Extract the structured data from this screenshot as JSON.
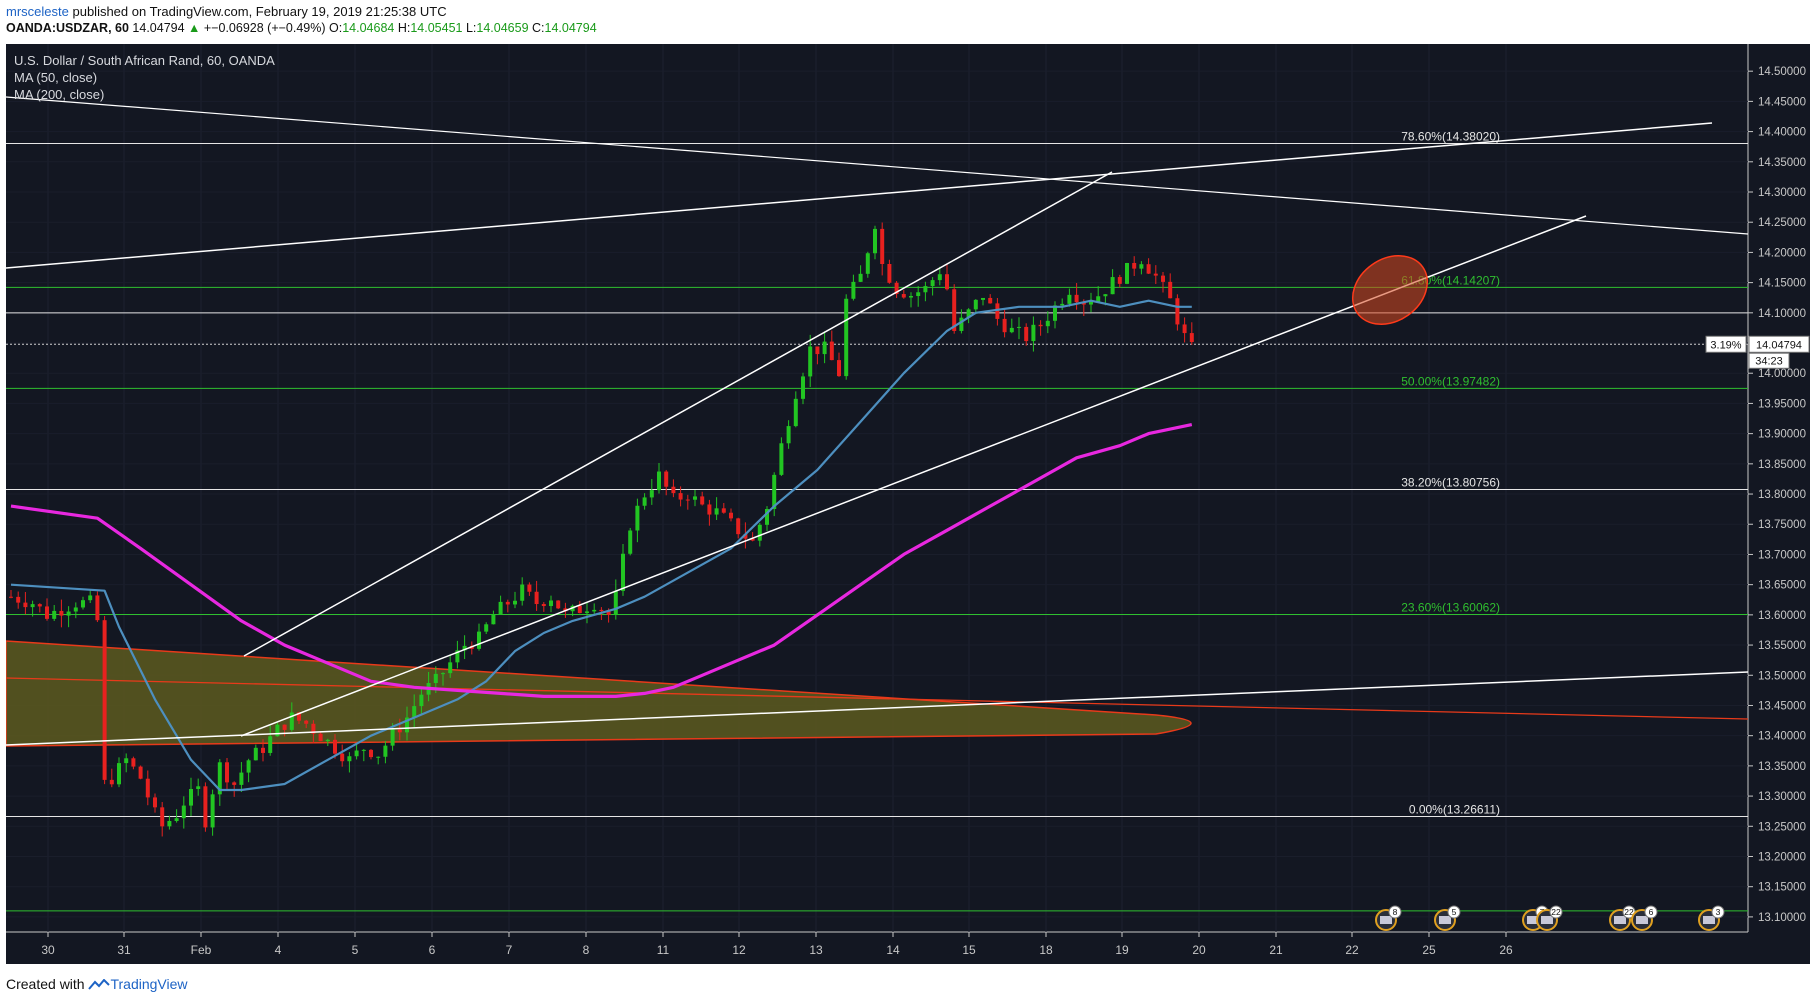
{
  "header": {
    "user": "mrsceleste",
    "published": "published on TradingView.com, February 19, 2019 21:25:38 UTC",
    "symbol": "OANDA:USDZAR, 60",
    "last": "14.04794",
    "change": "+−0.06928 (+−0.49%)",
    "open_label": "O:",
    "open": "14.04684",
    "high_label": "H:",
    "high": "14.05451",
    "low_label": "L:",
    "low": "14.04659",
    "close_label": "C:",
    "close": "14.04794"
  },
  "legend": {
    "title": "U.S. Dollar / South African Rand, 60, OANDA",
    "ma50": "MA (50, close)",
    "ma200": "MA (200, close)"
  },
  "footer": {
    "created": "Created with",
    "brand": "TradingView"
  },
  "colors": {
    "background": "#131722",
    "up": "#22c522",
    "down": "#e8211f",
    "ma50": "#4d8fbf",
    "ma200": "#e828e0",
    "fib_green": "#2fbf2f",
    "trend": "#ffffff",
    "ellipse_fill": "#5d5a1e",
    "ellipse_stroke": "#e83a1a"
  },
  "price_tags": {
    "pct": "3.19%",
    "price": "14.04794",
    "countdown": "34:23"
  },
  "events": [
    {
      "count": "8",
      "icon": "us-flag-icon"
    },
    {
      "count": "5",
      "icon": "us-flag-icon"
    },
    {
      "count": "7",
      "icon": "us-flag-icon"
    },
    {
      "count": "22",
      "icon": "us-flag-icon"
    },
    {
      "count": "22",
      "icon": "us-flag-icon"
    },
    {
      "count": "6",
      "icon": "us-flag-icon"
    },
    {
      "count": "3",
      "icon": "us-flag-icon"
    }
  ],
  "chart_data": {
    "type": "candlestick",
    "ylim": [
      13.075,
      14.545
    ],
    "yticks": [
      14.5,
      14.45,
      14.4,
      14.35,
      14.3,
      14.25,
      14.2,
      14.15,
      14.1,
      14.05,
      14.0,
      13.95,
      13.9,
      13.85,
      13.8,
      13.75,
      13.7,
      13.65,
      13.6,
      13.55,
      13.5,
      13.45,
      13.4,
      13.35,
      13.3,
      13.25,
      13.2,
      13.15,
      13.1
    ],
    "xticks": [
      "30",
      "31",
      "Feb",
      "4",
      "5",
      "6",
      "7",
      "8",
      "11",
      "12",
      "13",
      "14",
      "15",
      "18",
      "19",
      "20",
      "21",
      "22",
      "25",
      "26"
    ],
    "horizontal_levels": [
      {
        "price": 14.3802,
        "label": "78.60%(14.38020)",
        "color": "white"
      },
      {
        "price": 14.14207,
        "label": "61.80%(14.14207)",
        "color": "green"
      },
      {
        "price": 14.1,
        "label": "",
        "color": "white"
      },
      {
        "price": 13.97482,
        "label": "50.00%(13.97482)",
        "color": "green"
      },
      {
        "price": 13.80756,
        "label": "38.20%(13.80756)",
        "color": "white"
      },
      {
        "price": 13.60062,
        "label": "23.60%(13.60062)",
        "color": "green"
      },
      {
        "price": 13.26611,
        "label": "0.00%(13.26611)",
        "color": "white"
      },
      {
        "price": 13.11,
        "label": "",
        "color": "green"
      }
    ],
    "close_path": [
      [
        0,
        13.63
      ],
      [
        3,
        13.62
      ],
      [
        5,
        13.6
      ],
      [
        7,
        13.61
      ],
      [
        9,
        13.62
      ],
      [
        11,
        13.62
      ],
      [
        12,
        13.59
      ],
      [
        13,
        13.32
      ],
      [
        14,
        13.33
      ],
      [
        16,
        13.36
      ],
      [
        18,
        13.33
      ],
      [
        20,
        13.27
      ],
      [
        21,
        13.25
      ],
      [
        23,
        13.27
      ],
      [
        24,
        13.29
      ],
      [
        26,
        13.31
      ],
      [
        27,
        13.26
      ],
      [
        28,
        13.31
      ],
      [
        29,
        13.35
      ],
      [
        31,
        13.32
      ],
      [
        33,
        13.36
      ],
      [
        35,
        13.38
      ],
      [
        37,
        13.41
      ],
      [
        39,
        13.43
      ],
      [
        41,
        13.42
      ],
      [
        43,
        13.4
      ],
      [
        45,
        13.38
      ],
      [
        47,
        13.36
      ],
      [
        49,
        13.38
      ],
      [
        51,
        13.37
      ],
      [
        53,
        13.4
      ],
      [
        55,
        13.43
      ],
      [
        57,
        13.47
      ],
      [
        59,
        13.49
      ],
      [
        61,
        13.52
      ],
      [
        63,
        13.55
      ],
      [
        65,
        13.56
      ],
      [
        67,
        13.6
      ],
      [
        69,
        13.62
      ],
      [
        71,
        13.64
      ],
      [
        73,
        13.62
      ],
      [
        75,
        13.63
      ],
      [
        77,
        13.6
      ],
      [
        79,
        13.61
      ],
      [
        81,
        13.62
      ],
      [
        83,
        13.6
      ],
      [
        84,
        13.63
      ],
      [
        86,
        13.75
      ],
      [
        88,
        13.8
      ],
      [
        90,
        13.83
      ],
      [
        92,
        13.79
      ],
      [
        94,
        13.8
      ],
      [
        96,
        13.78
      ],
      [
        98,
        13.77
      ],
      [
        100,
        13.75
      ],
      [
        102,
        13.73
      ],
      [
        103,
        13.72
      ],
      [
        105,
        13.78
      ],
      [
        107,
        13.88
      ],
      [
        109,
        13.97
      ],
      [
        111,
        14.04
      ],
      [
        113,
        14.04
      ],
      [
        115,
        14.0
      ],
      [
        116,
        14.12
      ],
      [
        118,
        14.16
      ],
      [
        120,
        14.25
      ],
      [
        121,
        14.18
      ],
      [
        123,
        14.14
      ],
      [
        125,
        14.13
      ],
      [
        127,
        14.14
      ],
      [
        129,
        14.17
      ],
      [
        130,
        14.14
      ],
      [
        131,
        14.07
      ],
      [
        133,
        14.1
      ],
      [
        135,
        14.13
      ],
      [
        137,
        14.09
      ],
      [
        139,
        14.07
      ],
      [
        141,
        14.06
      ],
      [
        143,
        14.08
      ],
      [
        145,
        14.11
      ],
      [
        147,
        14.14
      ],
      [
        149,
        14.12
      ],
      [
        151,
        14.13
      ],
      [
        153,
        14.15
      ],
      [
        155,
        14.17
      ],
      [
        157,
        14.19
      ],
      [
        159,
        14.16
      ],
      [
        161,
        14.12
      ],
      [
        163,
        14.06
      ],
      [
        164,
        14.04
      ]
    ],
    "ma50": [
      [
        0,
        13.65
      ],
      [
        13,
        13.64
      ],
      [
        15,
        13.58
      ],
      [
        20,
        13.46
      ],
      [
        25,
        13.36
      ],
      [
        29,
        13.31
      ],
      [
        32,
        13.31
      ],
      [
        38,
        13.32
      ],
      [
        44,
        13.36
      ],
      [
        50,
        13.4
      ],
      [
        56,
        13.43
      ],
      [
        62,
        13.46
      ],
      [
        66,
        13.49
      ],
      [
        70,
        13.54
      ],
      [
        74,
        13.57
      ],
      [
        78,
        13.59
      ],
      [
        84,
        13.61
      ],
      [
        88,
        13.63
      ],
      [
        94,
        13.67
      ],
      [
        100,
        13.71
      ],
      [
        106,
        13.78
      ],
      [
        112,
        13.84
      ],
      [
        118,
        13.92
      ],
      [
        124,
        14.0
      ],
      [
        130,
        14.07
      ],
      [
        134,
        14.1
      ],
      [
        140,
        14.11
      ],
      [
        146,
        14.11
      ],
      [
        150,
        14.12
      ],
      [
        154,
        14.11
      ],
      [
        158,
        14.12
      ],
      [
        162,
        14.11
      ],
      [
        164,
        14.11
      ]
    ],
    "ma200": [
      [
        0,
        13.78
      ],
      [
        12,
        13.76
      ],
      [
        18,
        13.71
      ],
      [
        25,
        13.65
      ],
      [
        32,
        13.59
      ],
      [
        38,
        13.55
      ],
      [
        44,
        13.52
      ],
      [
        50,
        13.49
      ],
      [
        56,
        13.48
      ],
      [
        62,
        13.475
      ],
      [
        68,
        13.47
      ],
      [
        74,
        13.465
      ],
      [
        80,
        13.465
      ],
      [
        84,
        13.465
      ],
      [
        88,
        13.47
      ],
      [
        92,
        13.48
      ],
      [
        96,
        13.5
      ],
      [
        100,
        13.52
      ],
      [
        106,
        13.55
      ],
      [
        112,
        13.6
      ],
      [
        118,
        13.65
      ],
      [
        124,
        13.7
      ],
      [
        130,
        13.74
      ],
      [
        136,
        13.78
      ],
      [
        142,
        13.82
      ],
      [
        148,
        13.86
      ],
      [
        154,
        13.88
      ],
      [
        158,
        13.9
      ],
      [
        162,
        13.91
      ],
      [
        164,
        13.915
      ]
    ]
  }
}
